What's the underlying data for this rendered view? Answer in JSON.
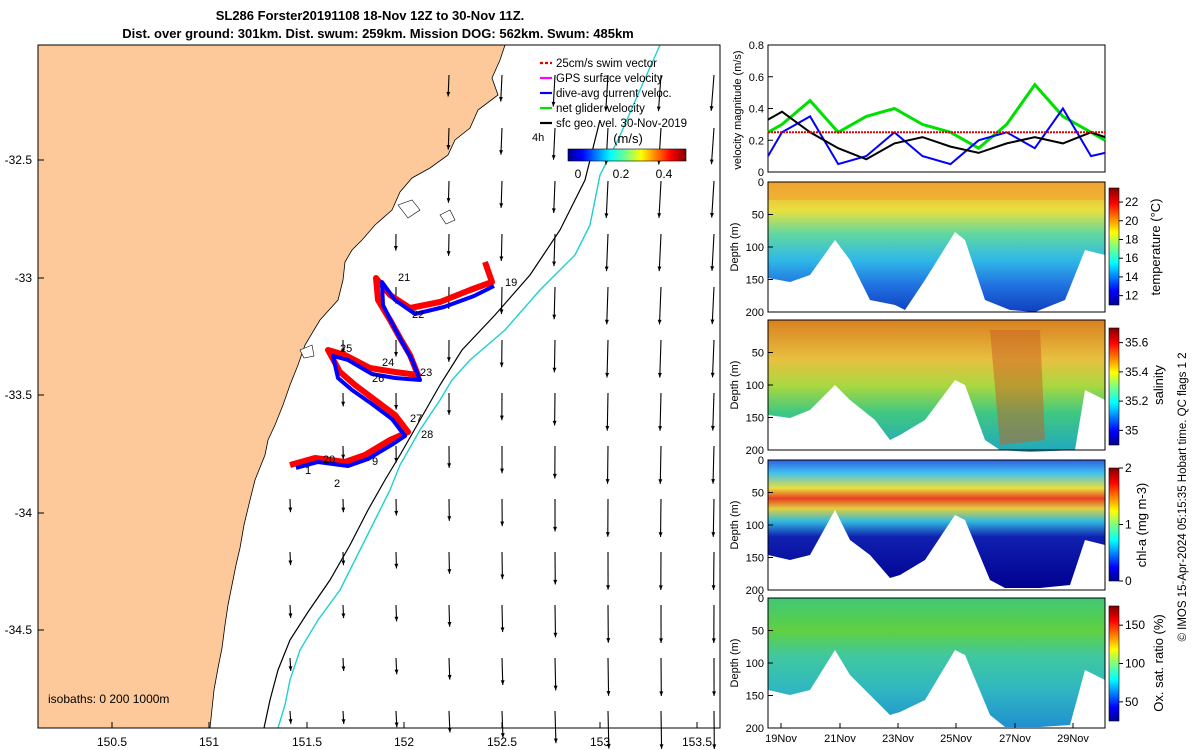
{
  "title": {
    "line1": "SL286 Forster20191108 18-Nov 12Z to 30-Nov 11Z.",
    "line2": "Dist. over ground: 301km. Dist. swum: 259km. Mission DOG: 562km. Swum: 485km"
  },
  "map": {
    "x_ticks": [
      "150.5",
      "151",
      "151.5",
      "152",
      "152.5",
      "153",
      "153.5"
    ],
    "y_ticks": [
      "-32.5",
      "-33",
      "-33.5",
      "-34",
      "-34.5"
    ],
    "isobaths_label": "isobaths: 0   200   1000m",
    "time_step_label": "4h",
    "legend": [
      {
        "label": "25cm/s swim vector",
        "color": "#e00000"
      },
      {
        "label": "GPS surface velocity",
        "color": "#ff00ff"
      },
      {
        "label": "dive-avg current veloc.",
        "color": "#0000ff"
      },
      {
        "label": "net glider velocity",
        "color": "#00e000"
      },
      {
        "label": "sfc geo. vel. 30-Nov-2019",
        "color": "#000000"
      }
    ],
    "colorbar_title": "(m/s)",
    "colorbar_ticks": [
      "0",
      "0.2",
      "0.4"
    ],
    "day_labels": [
      "19",
      "21",
      "22",
      "25",
      "24",
      "26",
      "23",
      "27",
      "28",
      "1",
      "20",
      "2",
      "9"
    ],
    "land_color": "#fdc89a",
    "track_color": "#ff0000",
    "current_color": "#0000ff"
  },
  "chart_data": [
    {
      "type": "line",
      "ylabel": "velocity magnitude (m/s)",
      "ylim": [
        0,
        0.8
      ],
      "y_ticks": [
        "0",
        "0.2",
        "0.4",
        "0.6",
        "0.8"
      ],
      "x": [
        "18.5",
        "19",
        "20",
        "21",
        "22",
        "23",
        "24",
        "25",
        "26",
        "27",
        "28",
        "29",
        "30",
        "30.5"
      ],
      "series": [
        {
          "color": "#00e000",
          "values": [
            0.25,
            0.3,
            0.45,
            0.25,
            0.35,
            0.4,
            0.3,
            0.25,
            0.15,
            0.3,
            0.55,
            0.35,
            0.25,
            0.2
          ]
        },
        {
          "color": "#0000ff",
          "values": [
            0.1,
            0.25,
            0.35,
            0.05,
            0.1,
            0.25,
            0.1,
            0.05,
            0.2,
            0.25,
            0.15,
            0.4,
            0.1,
            0.12
          ]
        },
        {
          "color": "#000000",
          "values": [
            0.33,
            0.38,
            0.25,
            0.15,
            0.08,
            0.18,
            0.22,
            0.16,
            0.12,
            0.18,
            0.22,
            0.18,
            0.25,
            0.22
          ]
        },
        {
          "color": "#e00000",
          "values": [
            0.25,
            0.25,
            0.25,
            0.25,
            0.25,
            0.25,
            0.25,
            0.25,
            0.25,
            0.25,
            0.25,
            0.25,
            0.25,
            0.25
          ]
        }
      ]
    },
    {
      "type": "heatmap",
      "ylabel": "Depth (m)",
      "y_ticks": [
        "0",
        "50",
        "100",
        "150",
        "200"
      ],
      "colorbar_label": "temperature (°C)",
      "colorbar_ticks": [
        "12",
        "14",
        "16",
        "18",
        "20",
        "22"
      ]
    },
    {
      "type": "heatmap",
      "ylabel": "Depth (m)",
      "y_ticks": [
        "50",
        "100",
        "150",
        "200"
      ],
      "colorbar_label": "salinity",
      "colorbar_ticks": [
        "35",
        "35.2",
        "35.4",
        "35.6"
      ]
    },
    {
      "type": "heatmap",
      "ylabel": "Depth (m)",
      "y_ticks": [
        "0",
        "50",
        "100",
        "150",
        "200"
      ],
      "colorbar_label": "chl-a (mg m-3)",
      "colorbar_ticks": [
        "0",
        "1",
        "2"
      ]
    },
    {
      "type": "heatmap",
      "ylabel": "Depth (m)",
      "y_ticks": [
        "0",
        "50",
        "100",
        "150",
        "200"
      ],
      "colorbar_label": "Ox. sat. ratio (%)",
      "colorbar_ticks": [
        "50",
        "100",
        "150"
      ],
      "x_ticks": [
        "19Nov",
        "21Nov",
        "23Nov",
        "25Nov",
        "27Nov",
        "29Nov"
      ]
    }
  ],
  "credit": "© IMOS 15-Apr-2024 05:15:35 Hobart time. QC flags 1  2"
}
